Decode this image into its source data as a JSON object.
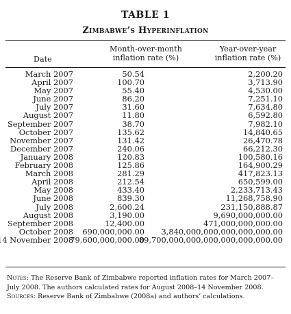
{
  "table": {
    "number": "TABLE 1",
    "title": "Zimbabwe’s Hyperinflation",
    "headers": {
      "date": "Date",
      "mom_line1": "Month-over-month",
      "mom_line2": "inflation rate (%)",
      "yoy_line1": "Year-over-year",
      "yoy_line2": "inflation rate (%)"
    },
    "rows": [
      {
        "date": "March 2007",
        "mom": "50.54",
        "yoy": "2,200.20"
      },
      {
        "date": "April 2007",
        "mom": "100.70",
        "yoy": "3,713.90"
      },
      {
        "date": "May 2007",
        "mom": "55.40",
        "yoy": "4,530.00"
      },
      {
        "date": "June 2007",
        "mom": "86.20",
        "yoy": "7,251.10"
      },
      {
        "date": "July 2007",
        "mom": "31.60",
        "yoy": "7,634.80"
      },
      {
        "date": "August 2007",
        "mom": "11.80",
        "yoy": "6,592.80"
      },
      {
        "date": "September 2007",
        "mom": "38.70",
        "yoy": "7,982.10"
      },
      {
        "date": "October 2007",
        "mom": "135.62",
        "yoy": "14,840.65"
      },
      {
        "date": "November 2007",
        "mom": "131.42",
        "yoy": "26,470.78"
      },
      {
        "date": "December 2007",
        "mom": "240.06",
        "yoy": "66,212.30"
      },
      {
        "date": "January 2008",
        "mom": "120.83",
        "yoy": "100,580.16"
      },
      {
        "date": "February 2008",
        "mom": "125.86",
        "yoy": "164,900.29"
      },
      {
        "date": "March 2008",
        "mom": "281.29",
        "yoy": "417,823.13"
      },
      {
        "date": "April 2008",
        "mom": "212.54",
        "yoy": "650,599.00"
      },
      {
        "date": "May 2008",
        "mom": "433.40",
        "yoy": "2,233,713.43"
      },
      {
        "date": "June 2008",
        "mom": "839.30",
        "yoy": "11,268,758.90"
      },
      {
        "date": "July 2008",
        "mom": "2,600.24",
        "yoy": "231,150,888.87"
      },
      {
        "date": "August 2008",
        "mom": "3,190.00",
        "yoy": "9,690,000,000.00"
      },
      {
        "date": "September 2008",
        "mom": "12,400.00",
        "yoy": "471,000,000,000.00"
      },
      {
        "date": "October 2008",
        "mom": "690,000,000.00",
        "yoy": "3,840,000,000,000,000,000.00"
      },
      {
        "date": "14 November 2008",
        "mom": "79,600,000,000.00",
        "yoy": "89,700,000,000,000,000,000,000.00"
      }
    ]
  },
  "notes": {
    "notes_label": "Notes:",
    "notes_text": " The Reserve Bank of Zimbabwe reported inflation rates for March 2007–July 2008. The authors calculated rates for August 2008–14 November 2008.",
    "sources_label": "Sources:",
    "sources_text": " Reserve Bank of Zimbabwe (2008a) and authors’ calculations."
  }
}
